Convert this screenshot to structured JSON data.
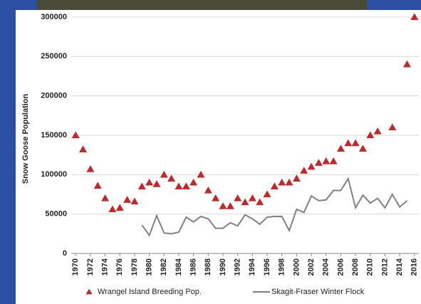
{
  "chart_data": {
    "type": "scatter-line",
    "y_label": "Snow Goose Population",
    "xlim": [
      1969.4,
      2016.6
    ],
    "ylim": [
      0,
      300000
    ],
    "xticks": [
      1970,
      1972,
      1974,
      1976,
      1978,
      1980,
      1982,
      1984,
      1986,
      1988,
      1990,
      1992,
      1994,
      1996,
      1998,
      2000,
      2002,
      2004,
      2006,
      2008,
      2010,
      2012,
      2014,
      2016
    ],
    "yticks": [
      0,
      50000,
      100000,
      150000,
      200000,
      250000,
      300000
    ],
    "grid": true,
    "series": [
      {
        "name": "Wrangel Island Breeding Pop.",
        "color": "#c0282a",
        "marker": "triangle",
        "x": [
          1970,
          1971,
          1972,
          1973,
          1974,
          1975,
          1976,
          1977,
          1978,
          1979,
          1980,
          1981,
          1982,
          1983,
          1984,
          1985,
          1986,
          1987,
          1988,
          1989,
          1990,
          1991,
          1992,
          1993,
          1994,
          1995,
          1996,
          1997,
          1998,
          1999,
          2000,
          2001,
          2002,
          2003,
          2004,
          2005,
          2006,
          2007,
          2008,
          2009,
          2010,
          2011,
          2013,
          2015,
          2016
        ],
        "values": [
          150000,
          132000,
          107000,
          86000,
          70000,
          56000,
          58000,
          68000,
          66000,
          85000,
          90000,
          88000,
          100000,
          95000,
          85000,
          85000,
          90000,
          100000,
          80000,
          70000,
          60000,
          60000,
          70000,
          65000,
          70000,
          65000,
          75000,
          85000,
          90000,
          90000,
          95000,
          105000,
          110000,
          115000,
          117000,
          117000,
          133000,
          140000,
          140000,
          133000,
          150000,
          155000,
          160000,
          240000,
          300000
        ]
      },
      {
        "name": "Skagit-Fraser Winter Flock",
        "color": "#808080",
        "marker": "line",
        "x": [
          1979,
          1980,
          1981,
          1982,
          1983,
          1984,
          1985,
          1986,
          1987,
          1988,
          1989,
          1990,
          1991,
          1992,
          1993,
          1994,
          1995,
          1996,
          1997,
          1998,
          1999,
          2000,
          2001,
          2002,
          2003,
          2004,
          2005,
          2006,
          2007,
          2008,
          2009,
          2010,
          2011,
          2012,
          2013,
          2014,
          2015
        ],
        "values": [
          36000,
          23000,
          48000,
          26000,
          25000,
          27000,
          46000,
          40000,
          47000,
          44000,
          32000,
          32000,
          39000,
          35000,
          49000,
          44000,
          37000,
          46000,
          47000,
          47000,
          29000,
          56000,
          52000,
          73000,
          67000,
          68000,
          80000,
          80000,
          95000,
          58000,
          74000,
          64000,
          70000,
          58000,
          75000,
          59000,
          67000
        ]
      }
    ]
  }
}
